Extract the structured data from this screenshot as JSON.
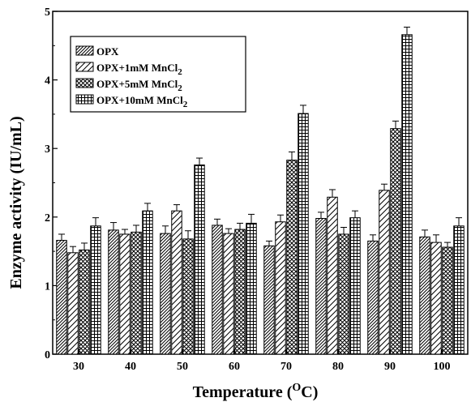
{
  "chart_data": {
    "type": "bar",
    "title": "",
    "xlabel": "Temperature (",
    "xlabel_sup": "O",
    "xlabel_tail": "C)",
    "ylabel": "Enzyme activity (IU/mL)",
    "ylim": [
      0,
      5
    ],
    "yticks": [
      "0",
      "1",
      "2",
      "3",
      "4",
      "5"
    ],
    "categories": [
      "30",
      "40",
      "50",
      "60",
      "70",
      "80",
      "90",
      "100"
    ],
    "legend_position": "top-left",
    "series": [
      {
        "name": "OPX",
        "name_sub": "",
        "pattern": "diag-thin",
        "values": [
          1.66,
          1.81,
          1.76,
          1.88,
          1.58,
          1.98,
          1.65,
          1.71
        ],
        "errors": [
          0.09,
          0.11,
          0.11,
          0.09,
          0.07,
          0.09,
          0.09,
          0.1
        ]
      },
      {
        "name": "OPX+1mM MnCl",
        "name_sub": "2",
        "pattern": "diag-wide",
        "values": [
          1.48,
          1.75,
          2.09,
          1.76,
          1.93,
          2.29,
          2.39,
          1.63
        ],
        "errors": [
          0.09,
          0.07,
          0.09,
          0.07,
          0.1,
          0.11,
          0.09,
          0.11
        ]
      },
      {
        "name": "OPX+5mM MnCl",
        "name_sub": "2",
        "pattern": "cross",
        "values": [
          1.52,
          1.78,
          1.68,
          1.82,
          2.83,
          1.75,
          3.29,
          1.56
        ],
        "errors": [
          0.1,
          0.1,
          0.12,
          0.09,
          0.12,
          0.1,
          0.11,
          0.07
        ]
      },
      {
        "name": "OPX+10mM MnCl",
        "name_sub": "2",
        "pattern": "grid",
        "values": [
          1.87,
          2.09,
          2.76,
          1.91,
          3.51,
          1.99,
          4.66,
          1.87
        ],
        "errors": [
          0.12,
          0.11,
          0.1,
          0.13,
          0.12,
          0.1,
          0.11,
          0.12
        ]
      }
    ]
  }
}
